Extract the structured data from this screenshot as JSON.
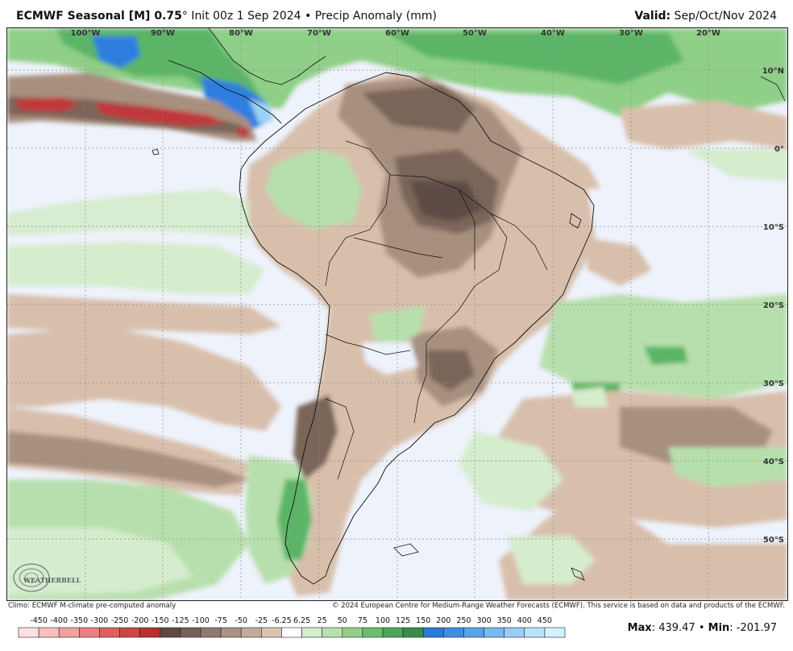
{
  "header": {
    "title_bold": "ECMWF Seasonal [M] 0.75",
    "title_deg": "°",
    "title_rest": " Init 00z 1 Sep 2024 • Precip Anomaly (mm)",
    "valid_label": "Valid:",
    "valid_value": " Sep/Oct/Nov 2024"
  },
  "map": {
    "lon_labels": [
      "100°W",
      "90°W",
      "80°W",
      "70°W",
      "60°W",
      "50°W",
      "40°W",
      "30°W",
      "20°W"
    ],
    "lat_labels": [
      "10°N",
      "0°",
      "10°S",
      "20°S",
      "30°S",
      "40°S",
      "50°S"
    ],
    "logo_text": "WEATHERBELL"
  },
  "footer": {
    "climo_note": "Climo: ECMWF M-climate pre-computed anomaly",
    "copyright": "© 2024 European Centre for Medium-Range Weather Forecasts (ECMWF). This service is based on data and products of the ECMWF.",
    "max_label": "Max",
    "max_value": ": 439.47",
    "sep": " • ",
    "min_label": "Min",
    "min_value": ": -201.97"
  },
  "colorbar": {
    "labels": [
      "-450",
      "-400",
      "-350",
      "-300",
      "-250",
      "-200",
      "-150",
      "-125",
      "-100",
      "-75",
      "-50",
      "-25",
      "-6.25",
      "6.25",
      "25",
      "50",
      "75",
      "100",
      "125",
      "150",
      "200",
      "250",
      "300",
      "350",
      "400",
      "450"
    ],
    "colors": [
      "#fde0e0",
      "#f9c0c0",
      "#f4a0a0",
      "#ec8080",
      "#e06060",
      "#d04545",
      "#bb3030",
      "#5e4a42",
      "#75615a",
      "#8e7a70",
      "#a89385",
      "#c2ab9a",
      "#dcc3b0",
      "#ffffff",
      "#d5eccd",
      "#b8e0ad",
      "#92d08a",
      "#6cbd6c",
      "#4ea55a",
      "#3b8c48",
      "#2a7ad8",
      "#3f8ee6",
      "#5aa3ee",
      "#78b9f2",
      "#98cef6",
      "#b8e4fa",
      "#d0f2fc"
    ]
  }
}
